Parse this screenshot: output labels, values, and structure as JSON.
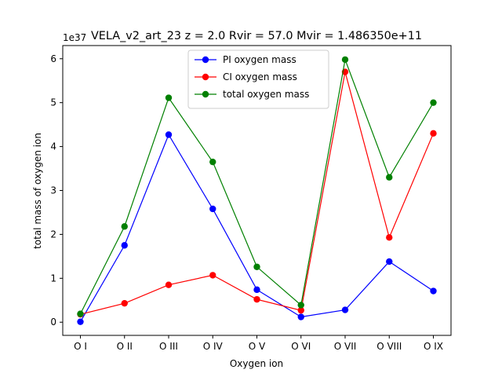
{
  "chart_data": {
    "type": "line",
    "title": "VELA_v2_art_23 z = 2.0 Rvir = 57.0 Mvir = 1.486350e+11",
    "xlabel": "Oxygen ion",
    "ylabel": "total mass of oxygen ion",
    "offset_text": "1e37",
    "categories": [
      "O I",
      "O II",
      "O III",
      "O IV",
      "O V",
      "O VI",
      "O VII",
      "O VIII",
      "O IX"
    ],
    "yticks": [
      "0",
      "1",
      "2",
      "3",
      "4",
      "5",
      "6"
    ],
    "ylim": [
      -0.3,
      6.3
    ],
    "legend_position": "upper center",
    "series": [
      {
        "name": "PI oxygen mass",
        "color": "#0000ff",
        "values": [
          0.01,
          1.75,
          4.27,
          2.58,
          0.74,
          0.12,
          0.28,
          1.38,
          0.71
        ]
      },
      {
        "name": "CI oxygen mass",
        "color": "#ff0000",
        "values": [
          0.18,
          0.43,
          0.85,
          1.07,
          0.52,
          0.27,
          5.7,
          1.93,
          4.3
        ]
      },
      {
        "name": "total oxygen mass",
        "color": "#008000",
        "values": [
          0.19,
          2.18,
          5.11,
          3.65,
          1.26,
          0.39,
          5.98,
          3.3,
          5.0
        ]
      }
    ]
  }
}
